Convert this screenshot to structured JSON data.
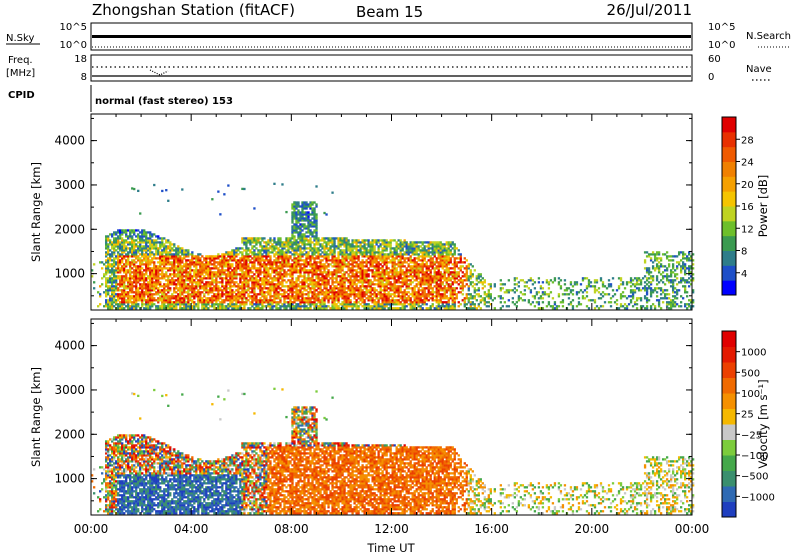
{
  "header": {
    "station": "Zhongshan Station (fitACF)",
    "beam": "Beam 15",
    "date": "26/Jul/2011"
  },
  "summary_panels": {
    "nsky": {
      "left_label": "N.Sky",
      "left_ticks": [
        "10^5",
        "10^0"
      ],
      "right_label": "N.Search",
      "right_ticks": [
        "10^5",
        "10^0"
      ]
    },
    "freq": {
      "left_label_line1": "Freq.",
      "left_label_line2": "[MHz]",
      "left_ticks": [
        "18",
        "8"
      ],
      "right_label": "Nave",
      "right_ticks": [
        "60",
        "0"
      ]
    },
    "cpid": {
      "label": "CPID",
      "mode_text": "normal (fast stereo) 153"
    }
  },
  "chart_data": [
    {
      "type": "heatmap",
      "name": "power",
      "xlabel": "",
      "ylabel": "Slant Range [km]",
      "xlim": [
        0,
        24
      ],
      "ylim": [
        180,
        4600
      ],
      "yticks": [
        "1000",
        "2000",
        "3000",
        "4000"
      ],
      "colorbar": {
        "label": "Power [dB]",
        "ticks": [
          "28",
          "24",
          "20",
          "16",
          "12",
          "8",
          "4"
        ],
        "colors": [
          "#0000ff",
          "#1e4fc8",
          "#2e7d8a",
          "#3a9a50",
          "#6dbf2b",
          "#bfd321",
          "#f5c400",
          "#f5a000",
          "#f08000",
          "#ef5a00",
          "#e83000",
          "#e00000"
        ]
      }
    },
    {
      "type": "heatmap",
      "name": "velocity",
      "xlabel": "Time UT",
      "ylabel": "Slant Range [km]",
      "xlim": [
        0,
        24
      ],
      "ylim": [
        180,
        4600
      ],
      "xticks": [
        "00:00",
        "04:00",
        "08:00",
        "12:00",
        "16:00",
        "20:00",
        "00:00"
      ],
      "yticks": [
        "1000",
        "2000",
        "3000",
        "4000"
      ],
      "colorbar": {
        "label": "Velocity [m s⁻¹]",
        "ticks": [
          "1000",
          "500",
          "100",
          "25",
          "-25",
          "-100",
          "-500",
          "-1000"
        ],
        "colors": [
          "#1f3fbf",
          "#2f6ab3",
          "#3a8f6e",
          "#44a84a",
          "#7ccc3c",
          "#c8c8c8",
          "#f5b800",
          "#f59000",
          "#f06a00",
          "#ec4000",
          "#e41a00",
          "#e00000"
        ]
      }
    }
  ]
}
